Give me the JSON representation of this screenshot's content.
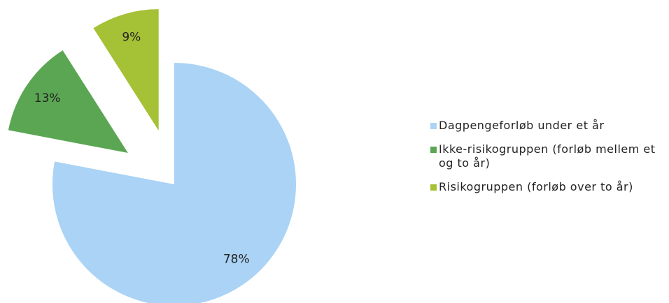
{
  "chart_data": {
    "type": "pie",
    "categories": [
      "Dagpengeforløb under et år",
      "Ikke-risikogruppen (forløb mellem et og to år)",
      "Risikogruppen (forløb over to år)"
    ],
    "values": [
      78,
      13,
      9
    ],
    "value_labels": [
      "78%",
      "13%",
      "9%"
    ],
    "colors": [
      "#aad3f5",
      "#5ba653",
      "#a5c136"
    ],
    "exploded": [
      false,
      true,
      true
    ],
    "legend": "right"
  }
}
